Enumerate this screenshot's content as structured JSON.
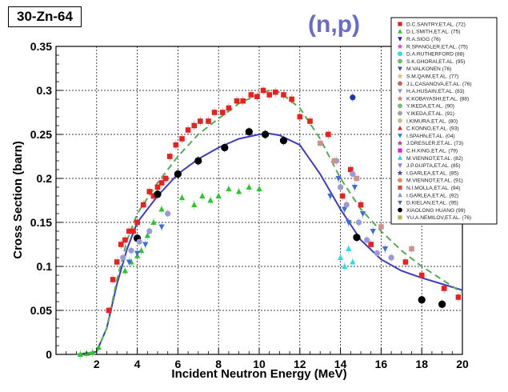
{
  "chart_data": {
    "type": "scatter",
    "nuclide_label": "30-Zn-64",
    "reaction_label": "(n,p)",
    "xlabel": "Incident Neutron Energy (MeV)",
    "ylabel": "Cross Section (barn)",
    "xlim": [
      0,
      20
    ],
    "ylim": [
      0,
      0.35
    ],
    "x_ticks": [
      "2",
      "4",
      "6",
      "8",
      "10",
      "12",
      "14",
      "16",
      "18",
      "20"
    ],
    "y_ticks": [
      "0",
      "0.05",
      "0.1",
      "0.15",
      "0.2",
      "0.25",
      "0.3",
      "0.35"
    ],
    "grid": true,
    "legend_position": "top-right",
    "legend": [
      {
        "name": "D.C.SANTRY,ET.AL. (72)",
        "color": "#e8201f",
        "marker": "square"
      },
      {
        "name": "D.L.SMITH,ET.AL. (75)",
        "color": "#2ec42e",
        "marker": "triangle-up"
      },
      {
        "name": "R.A.SIGG (76)",
        "color": "#2020d0",
        "marker": "triangle-down"
      },
      {
        "name": "R.SPANGLER,ET.AL. (75)",
        "color": "#e040e0",
        "marker": "star"
      },
      {
        "name": "D.A.RUTHERFORD (88)",
        "color": "#30d8e8",
        "marker": "circle"
      },
      {
        "name": "S.K.GHORAI,ET.AL. (95)",
        "color": "#60c060",
        "marker": "circle"
      },
      {
        "name": "M.VALKONEN (76)",
        "color": "#3050b0",
        "marker": "triangle-down"
      },
      {
        "name": "S.M.QAIM,ET.AL. (77)",
        "color": "#f0b070",
        "marker": "star"
      },
      {
        "name": "J.L.CASANOVA,ET.AL. (76)",
        "color": "#d06060",
        "marker": "circle"
      },
      {
        "name": "H.A.HUSAIN,ET.AL. (83)",
        "color": "#9090d0",
        "marker": "triangle-down"
      },
      {
        "name": "K.KOBAYASHI,ET.AL. (88)",
        "color": "#e07070",
        "marker": "star"
      },
      {
        "name": "Y.IKEDA,ET.AL. (90)",
        "color": "#70c070",
        "marker": "circle"
      },
      {
        "name": "Y.IKEDA,ET.AL. (91)",
        "color": "#a0a0a0",
        "marker": "circle"
      },
      {
        "name": "I.KIMURA,ET.AL. (80)",
        "color": "#c0c080",
        "marker": "circle"
      },
      {
        "name": "C.KONNO,ET.AL. (93)",
        "color": "#e82020",
        "marker": "triangle-up"
      },
      {
        "name": "I.SPAHN,ET.AL. (04)",
        "color": "#2080e0",
        "marker": "triangle-down"
      },
      {
        "name": "J.DRESLER,ET.AL. (73)",
        "color": "#b040b0",
        "marker": "star"
      },
      {
        "name": "C.H.KING,ET.AL. (79)",
        "color": "#e020e0",
        "marker": "square"
      },
      {
        "name": "M.VIENNOT,ET.AL. (82)",
        "color": "#20d0d0",
        "marker": "triangle-up"
      },
      {
        "name": "J.P.GUPTA,ET.AL. (85)",
        "color": "#8080e0",
        "marker": "triangle-down"
      },
      {
        "name": "I.GARLEA,ET.AL. (85)",
        "color": "#4040c0",
        "marker": "star"
      },
      {
        "name": "M.VIENNOT,ET.AL. (91)",
        "color": "#e09050",
        "marker": "circle"
      },
      {
        "name": "N.I.MOLLA,ET.AL. (94)",
        "color": "#d05050",
        "marker": "square"
      },
      {
        "name": "I.GARLEA,ET.AL. (92)",
        "color": "#9090c0",
        "marker": "triangle-up"
      },
      {
        "name": "D.KIELAN,ET.AL. (95)",
        "color": "#5070a0",
        "marker": "triangle-down"
      },
      {
        "name": "XIAOLONG HUANG (99)",
        "color": "#000000",
        "marker": "circle"
      },
      {
        "name": "YU.A.NEMILOV,ET.AL. (76)",
        "color": "#c0b060",
        "marker": "square"
      }
    ],
    "curves": [
      {
        "style": "solid",
        "color": "#3c3cc8",
        "x": [
          1.0,
          2.0,
          2.5,
          3.0,
          3.5,
          4.0,
          5.0,
          6.0,
          7.0,
          8.0,
          9.0,
          10.0,
          10.5,
          11.0,
          12.0,
          13.0,
          14.0,
          15.0,
          16.0,
          17.0,
          18.0,
          19.0,
          20.0
        ],
        "y": [
          0.0,
          0.003,
          0.03,
          0.08,
          0.12,
          0.15,
          0.18,
          0.205,
          0.222,
          0.235,
          0.245,
          0.25,
          0.251,
          0.249,
          0.238,
          0.205,
          0.165,
          0.13,
          0.108,
          0.095,
          0.087,
          0.08,
          0.073
        ]
      },
      {
        "style": "dashed",
        "color": "#50b050",
        "x": [
          1.0,
          2.0,
          2.5,
          3.0,
          3.5,
          4.0,
          5.0,
          6.0,
          7.0,
          8.0,
          9.0,
          10.0,
          10.5,
          11.0,
          12.0,
          13.0,
          14.0,
          15.0,
          16.0,
          17.0,
          18.0,
          19.0,
          20.0
        ],
        "y": [
          0.0,
          0.003,
          0.03,
          0.085,
          0.13,
          0.16,
          0.195,
          0.225,
          0.25,
          0.268,
          0.285,
          0.296,
          0.3,
          0.298,
          0.28,
          0.245,
          0.2,
          0.165,
          0.14,
          0.118,
          0.1,
          0.085,
          0.07
        ]
      }
    ],
    "series": [
      {
        "marker": "square",
        "color": "#e8201f",
        "x": [
          2.6,
          2.8,
          3.0,
          3.2,
          3.4,
          3.6,
          3.8,
          4.0,
          4.3,
          4.6,
          4.8,
          5.0,
          5.2,
          5.4,
          5.6,
          5.9,
          6.2,
          6.5,
          6.8,
          7.1,
          7.5,
          7.8,
          8.2,
          8.5,
          8.9,
          9.2,
          9.6,
          9.9,
          10.2,
          10.5,
          10.8,
          11.2,
          11.6,
          12.0,
          12.5,
          13.4,
          14.1,
          14.5,
          15.0,
          15.5,
          17.2,
          18.0,
          19.1,
          19.8
        ],
        "y": [
          0.05,
          0.085,
          0.105,
          0.125,
          0.13,
          0.14,
          0.14,
          0.15,
          0.17,
          0.185,
          0.18,
          0.19,
          0.195,
          0.2,
          0.225,
          0.238,
          0.245,
          0.255,
          0.26,
          0.265,
          0.265,
          0.275,
          0.275,
          0.28,
          0.288,
          0.288,
          0.295,
          0.293,
          0.3,
          0.295,
          0.298,
          0.295,
          0.29,
          0.27,
          0.265,
          0.25,
          0.18,
          0.21,
          0.17,
          0.125,
          0.105,
          0.09,
          0.075,
          0.065
        ]
      },
      {
        "marker": "triangle-up",
        "color": "#2ec42e",
        "x": [
          1.2,
          1.5,
          1.8,
          2.1,
          3.4,
          3.7,
          4.0,
          4.2,
          4.5,
          4.8,
          5.2,
          6.2,
          6.8,
          7.2,
          7.6,
          8.0,
          8.5,
          9.0,
          9.5,
          10.0
        ],
        "y": [
          0.0,
          0.001,
          0.002,
          0.008,
          0.095,
          0.105,
          0.112,
          0.118,
          0.135,
          0.15,
          0.165,
          0.178,
          0.17,
          0.18,
          0.175,
          0.18,
          0.188,
          0.185,
          0.19,
          0.188
        ]
      },
      {
        "marker": "circle",
        "color": "#000000",
        "x": [
          4.0,
          5.0,
          6.0,
          7.0,
          8.3,
          9.5,
          10.3,
          11.2,
          14.8,
          18.0,
          19.0
        ],
        "y": [
          0.132,
          0.182,
          0.205,
          0.22,
          0.235,
          0.253,
          0.25,
          0.243,
          0.133,
          0.062,
          0.057
        ]
      },
      {
        "marker": "triangle-down",
        "color": "#3a6fd8",
        "x": [
          3.6,
          4.0,
          4.4,
          5.2,
          13.5,
          13.9,
          14.2,
          14.4,
          14.7,
          15.1,
          15.6,
          16.2
        ],
        "y": [
          0.105,
          0.115,
          0.125,
          0.145,
          0.18,
          0.2,
          0.165,
          0.15,
          0.19,
          0.16,
          0.14,
          0.12
        ]
      },
      {
        "marker": "circle",
        "color": "#9a9ad8",
        "x": [
          3.3,
          3.7,
          4.1,
          4.6,
          5.5,
          13.8,
          14.0,
          14.3,
          14.6,
          14.9,
          15.3,
          15.8,
          16.5
        ],
        "y": [
          0.11,
          0.118,
          0.128,
          0.14,
          0.16,
          0.22,
          0.19,
          0.17,
          0.205,
          0.15,
          0.13,
          0.115,
          0.11
        ]
      },
      {
        "marker": "circle",
        "color": "#1a3aaa",
        "x": [
          14.6
        ],
        "y": [
          0.292
        ]
      },
      {
        "marker": "triangle-up",
        "color": "#30d8e8",
        "x": [
          14.0,
          14.2,
          14.4,
          14.6
        ],
        "y": [
          0.11,
          0.1,
          0.12,
          0.105
        ]
      },
      {
        "marker": "square",
        "color": "#d09090",
        "x": [
          13.0,
          13.7,
          14.8,
          16.0,
          17.5
        ],
        "y": [
          0.24,
          0.22,
          0.2,
          0.145,
          0.12
        ]
      }
    ]
  }
}
